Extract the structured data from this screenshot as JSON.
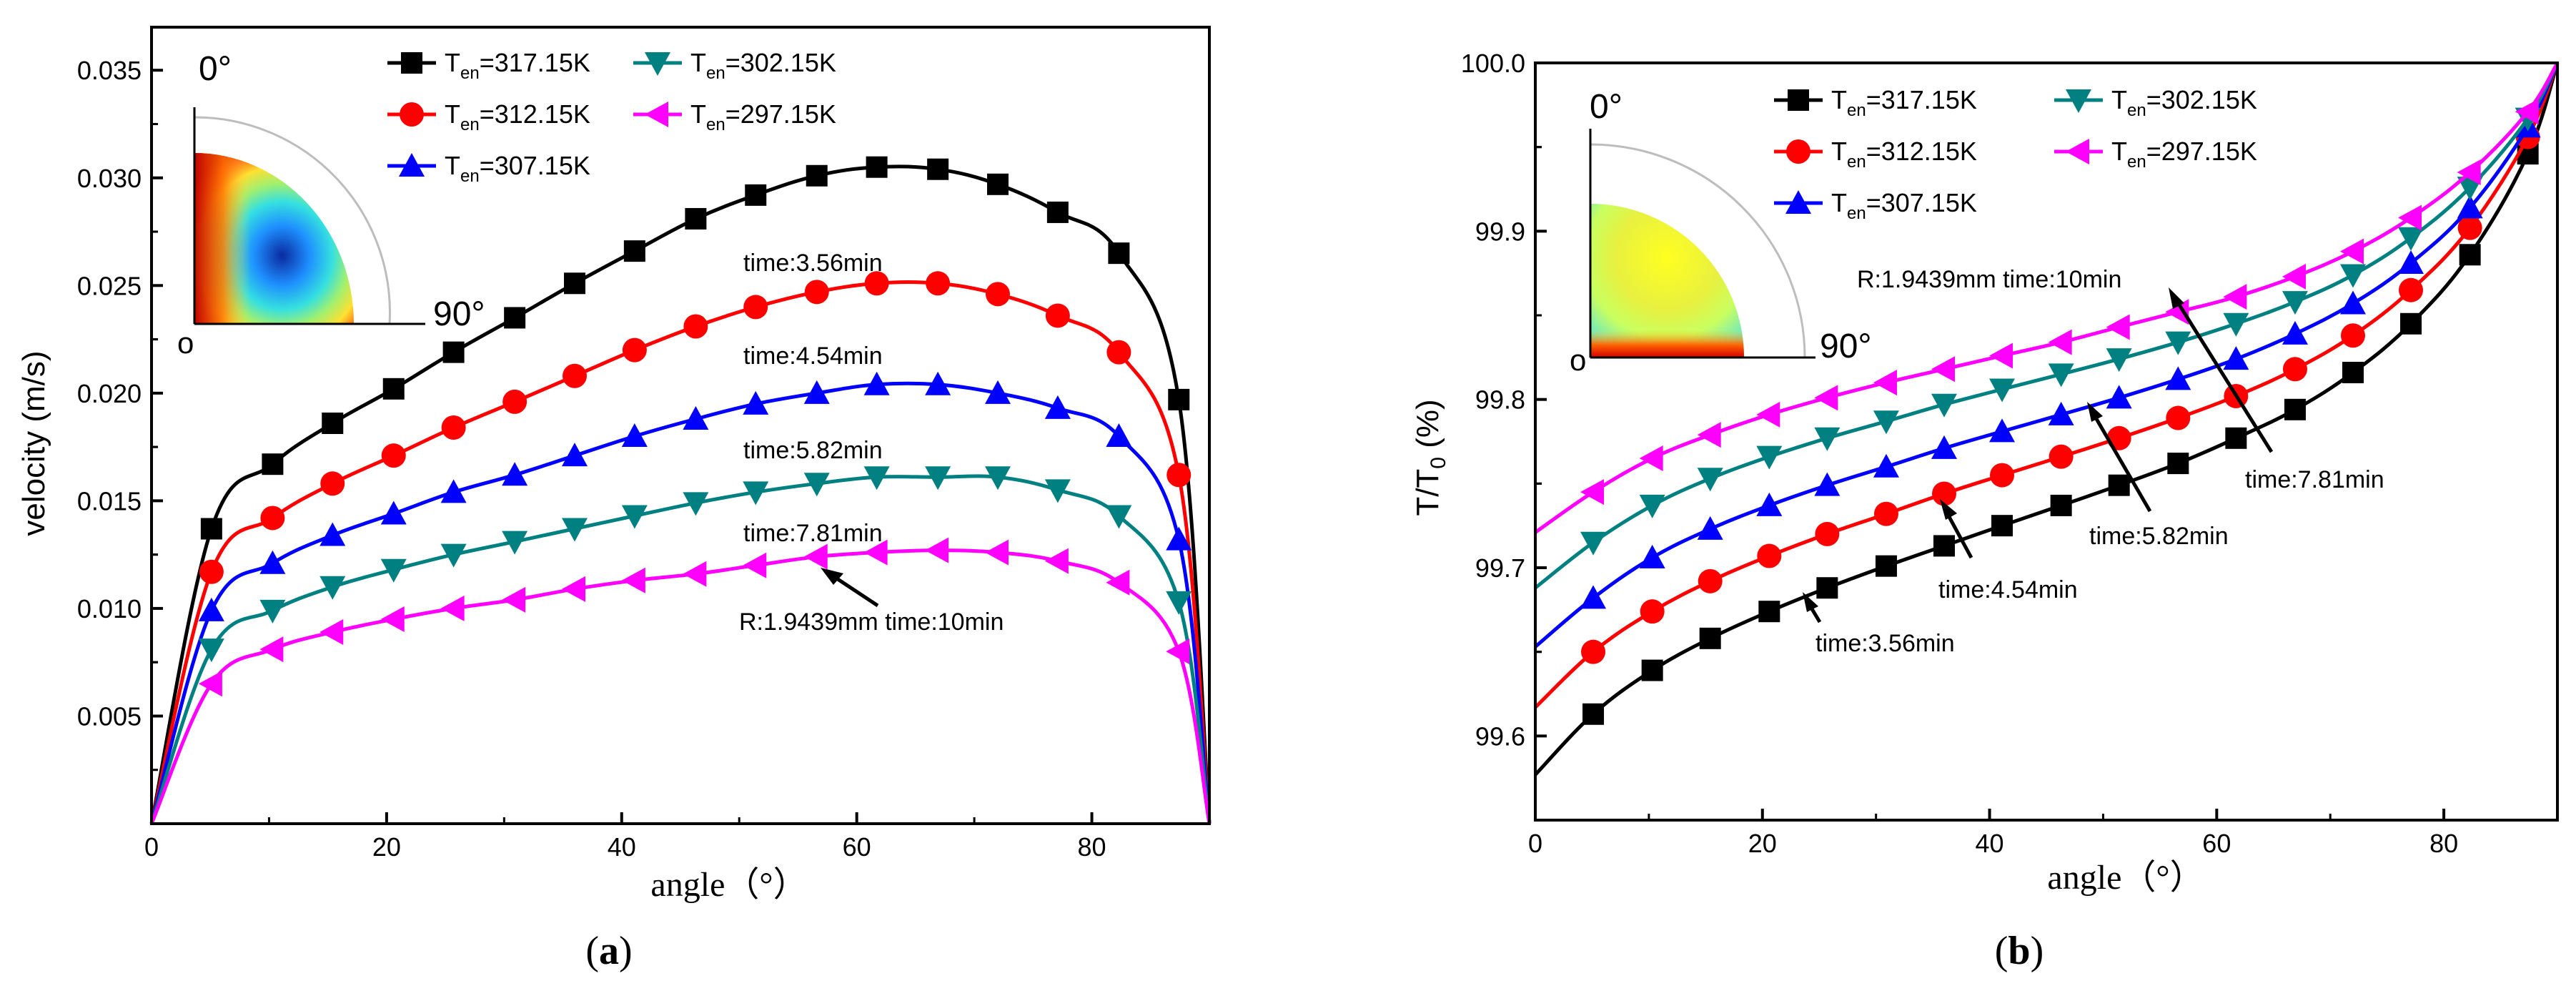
{
  "colors": {
    "s317": "#000000",
    "s312": "#ff0000",
    "s307": "#0000ff",
    "s302": "#008080",
    "s297": "#ff00ff"
  },
  "chart_data": [
    {
      "id": "a",
      "type": "line",
      "panel_label": "a",
      "xlabel": "angle（°）",
      "ylabel": "velocity (m/s)",
      "xlim": [
        0,
        90
      ],
      "ylim": [
        0,
        0.037
      ],
      "xticks": [
        0,
        20,
        40,
        60,
        80
      ],
      "xtick_labels": [
        "0",
        "20",
        "40",
        "60",
        "80"
      ],
      "yticks": [
        0.005,
        0.01,
        0.015,
        0.02,
        0.025,
        0.03,
        0.035
      ],
      "ytick_labels": [
        "0.005",
        "0.010",
        "0.015",
        "0.020",
        "0.025",
        "0.030",
        "0.035"
      ],
      "legend_sub": "en",
      "series": [
        {
          "name": "317.15K",
          "marker": "square",
          "color": "s317",
          "x": [
            0,
            5.1,
            10.3,
            15.4,
            20.6,
            25.7,
            30.9,
            36,
            41.1,
            46.3,
            51.4,
            56.6,
            61.7,
            66.9,
            72,
            77.1,
            82.3,
            87.4,
            90
          ],
          "y": [
            0,
            0.0137,
            0.0167,
            0.0186,
            0.0202,
            0.0219,
            0.0235,
            0.0251,
            0.0266,
            0.0281,
            0.0292,
            0.0301,
            0.0305,
            0.0304,
            0.0297,
            0.0284,
            0.0265,
            0.0197,
            0
          ]
        },
        {
          "name": "312.15K",
          "marker": "circle",
          "color": "s312",
          "x": [
            0,
            5.1,
            10.3,
            15.4,
            20.6,
            25.7,
            30.9,
            36,
            41.1,
            46.3,
            51.4,
            56.6,
            61.7,
            66.9,
            72,
            77.1,
            82.3,
            87.4,
            90
          ],
          "y": [
            0,
            0.0117,
            0.0142,
            0.0158,
            0.0171,
            0.0184,
            0.0196,
            0.0208,
            0.022,
            0.0231,
            0.024,
            0.0247,
            0.0251,
            0.0251,
            0.0246,
            0.0236,
            0.0219,
            0.0162,
            0
          ]
        },
        {
          "name": "307.15K",
          "marker": "triangle-up",
          "color": "s307",
          "x": [
            0,
            5.1,
            10.3,
            15.4,
            20.6,
            25.7,
            30.9,
            36,
            41.1,
            46.3,
            51.4,
            56.6,
            61.7,
            66.9,
            72,
            77.1,
            82.3,
            87.4,
            90
          ],
          "y": [
            0,
            0.0099,
            0.0121,
            0.0134,
            0.0144,
            0.0154,
            0.0162,
            0.0171,
            0.018,
            0.0188,
            0.0195,
            0.02,
            0.0204,
            0.0204,
            0.02,
            0.0193,
            0.018,
            0.0132,
            0
          ]
        },
        {
          "name": "302.15K",
          "marker": "triangle-down",
          "color": "s302",
          "x": [
            0,
            5.1,
            10.3,
            15.4,
            20.6,
            25.7,
            30.9,
            36,
            41.1,
            46.3,
            51.4,
            56.6,
            61.7,
            66.9,
            72,
            77.1,
            82.3,
            87.4,
            90
          ],
          "y": [
            0,
            0.0081,
            0.0099,
            0.011,
            0.0118,
            0.0125,
            0.0131,
            0.0137,
            0.0143,
            0.0149,
            0.0154,
            0.0158,
            0.0161,
            0.0161,
            0.0161,
            0.0155,
            0.0143,
            0.0103,
            0
          ]
        },
        {
          "name": "297.15K",
          "marker": "triangle-left",
          "color": "s297",
          "x": [
            0,
            5.1,
            10.3,
            15.4,
            20.6,
            25.7,
            30.9,
            36,
            41.1,
            46.3,
            51.4,
            56.6,
            61.7,
            66.9,
            72,
            77.1,
            82.3,
            87.4,
            90
          ],
          "y": [
            0,
            0.0065,
            0.0081,
            0.0089,
            0.0095,
            0.01,
            0.0104,
            0.0109,
            0.0113,
            0.0116,
            0.012,
            0.0124,
            0.0126,
            0.0127,
            0.0126,
            0.0122,
            0.0112,
            0.008,
            0
          ]
        }
      ],
      "annotations": [
        "time:3.56min",
        "time:4.54min",
        "time:5.82min",
        "time:7.81min",
        "R:1.9439mm time:10min"
      ],
      "inset": {
        "top_label": "0°",
        "right_label": "90°",
        "origin_label": "o"
      }
    },
    {
      "id": "b",
      "type": "line",
      "panel_label": "b",
      "xlabel": "angle（°）",
      "ylabel_main": "T/T",
      "ylabel_sub": "0",
      "ylabel_tail": " (%)",
      "xlim": [
        0,
        90
      ],
      "ylim": [
        99.55,
        100.0
      ],
      "xticks": [
        0,
        20,
        40,
        60,
        80
      ],
      "xtick_labels": [
        "0",
        "20",
        "40",
        "60",
        "80"
      ],
      "yticks": [
        99.6,
        99.7,
        99.8,
        99.9,
        100.0
      ],
      "ytick_labels": [
        "99.6",
        "99.7",
        "99.8",
        "99.9",
        "100.0"
      ],
      "legend_sub": "en",
      "series": [
        {
          "name": "317.15K",
          "marker": "square",
          "color": "s317",
          "x": [
            0,
            5.1,
            10.3,
            15.4,
            20.6,
            25.7,
            30.9,
            36,
            41.1,
            46.3,
            51.4,
            56.6,
            61.7,
            66.9,
            72,
            77.1,
            82.3,
            87.4,
            90
          ],
          "y": [
            99.577,
            99.613,
            99.639,
            99.658,
            99.674,
            99.688,
            99.701,
            99.713,
            99.725,
            99.737,
            99.749,
            99.762,
            99.777,
            99.794,
            99.816,
            99.845,
            99.886,
            99.946,
            100.0
          ]
        },
        {
          "name": "312.15K",
          "marker": "circle",
          "color": "s312",
          "x": [
            0,
            5.1,
            10.3,
            15.4,
            20.6,
            25.7,
            30.9,
            36,
            41.1,
            46.3,
            51.4,
            56.6,
            61.7,
            66.9,
            72,
            77.1,
            82.3,
            87.4,
            90
          ],
          "y": [
            99.617,
            99.65,
            99.674,
            99.692,
            99.707,
            99.72,
            99.732,
            99.744,
            99.755,
            99.766,
            99.777,
            99.789,
            99.802,
            99.818,
            99.838,
            99.865,
            99.902,
            99.956,
            100.0
          ]
        },
        {
          "name": "307.15K",
          "marker": "triangle-up",
          "color": "s307",
          "x": [
            0,
            5.1,
            10.3,
            15.4,
            20.6,
            25.7,
            30.9,
            36,
            41.1,
            46.3,
            51.4,
            56.6,
            61.7,
            66.9,
            72,
            77.1,
            82.3,
            87.4,
            90
          ],
          "y": [
            99.653,
            99.682,
            99.706,
            99.723,
            99.737,
            99.749,
            99.76,
            99.771,
            99.781,
            99.791,
            99.801,
            99.812,
            99.824,
            99.839,
            99.857,
            99.881,
            99.914,
            99.962,
            100.0
          ]
        },
        {
          "name": "302.15K",
          "marker": "triangle-down",
          "color": "s302",
          "x": [
            0,
            5.1,
            10.3,
            15.4,
            20.6,
            25.7,
            30.9,
            36,
            41.1,
            46.3,
            51.4,
            56.6,
            61.7,
            66.9,
            72,
            77.1,
            82.3,
            87.4,
            90
          ],
          "y": [
            99.688,
            99.715,
            99.737,
            99.753,
            99.766,
            99.777,
            99.787,
            99.797,
            99.806,
            99.815,
            99.824,
            99.834,
            99.845,
            99.858,
            99.874,
            99.896,
            99.926,
            99.967,
            100.0
          ]
        },
        {
          "name": "297.15K",
          "marker": "triangle-left",
          "color": "s297",
          "x": [
            0,
            5.1,
            10.3,
            15.4,
            20.6,
            25.7,
            30.9,
            36,
            41.1,
            46.3,
            51.4,
            56.6,
            61.7,
            66.9,
            72,
            77.1,
            82.3,
            87.4,
            90
          ],
          "y": [
            99.721,
            99.745,
            99.765,
            99.779,
            99.791,
            99.801,
            99.81,
            99.818,
            99.826,
            99.834,
            99.843,
            99.852,
            99.861,
            99.873,
            99.888,
            99.908,
            99.935,
            99.971,
            100.0
          ]
        }
      ],
      "annotations": [
        "time:3.56min",
        "time:4.54min",
        "time:5.82min",
        "time:7.81min",
        "R:1.9439mm time:10min"
      ],
      "inset": {
        "top_label": "0°",
        "right_label": "90°",
        "origin_label": "o"
      }
    }
  ]
}
